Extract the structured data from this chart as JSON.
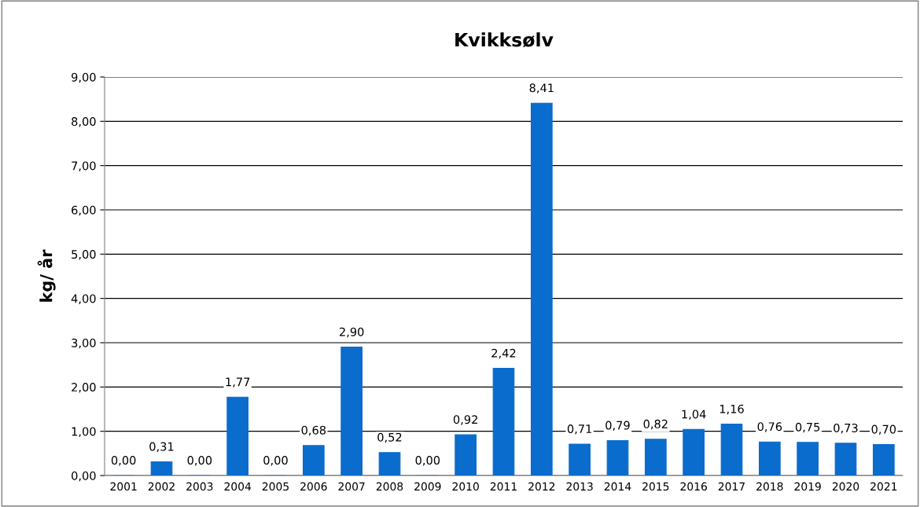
{
  "chart_data": {
    "type": "bar",
    "title": "Kvikksølv",
    "ylabel": "kg/ år",
    "categories": [
      "2001",
      "2002",
      "2003",
      "2004",
      "2005",
      "2006",
      "2007",
      "2008",
      "2009",
      "2010",
      "2011",
      "2012",
      "2013",
      "2014",
      "2015",
      "2016",
      "2017",
      "2018",
      "2019",
      "2020",
      "2021"
    ],
    "values": [
      0.0,
      0.31,
      0.0,
      1.77,
      0.0,
      0.68,
      2.9,
      0.52,
      0.0,
      0.92,
      2.42,
      8.41,
      0.71,
      0.79,
      0.82,
      1.04,
      1.16,
      0.76,
      0.75,
      0.73,
      0.7
    ],
    "value_labels": [
      "0,00",
      "0,31",
      "0,00",
      "1,77",
      "0,00",
      "0,68",
      "2,90",
      "0,52",
      "0,00",
      "0,92",
      "2,42",
      "8,41",
      "0,71",
      "0,79",
      "0,82",
      "1,04",
      "1,16",
      "0,76",
      "0,75",
      "0,73",
      "0,70"
    ],
    "color": "#0a6ccc",
    "ylim": [
      0,
      9
    ],
    "yticks": [
      {
        "value": 0,
        "label": "0,00"
      },
      {
        "value": 1,
        "label": "1,00"
      },
      {
        "value": 2,
        "label": "2,00"
      },
      {
        "value": 3,
        "label": "3,00"
      },
      {
        "value": 4,
        "label": "4,00"
      },
      {
        "value": 5,
        "label": "5,00"
      },
      {
        "value": 6,
        "label": "6,00"
      },
      {
        "value": 7,
        "label": "7,00"
      },
      {
        "value": 8,
        "label": "8,00"
      },
      {
        "value": 9,
        "label": "9,00"
      }
    ],
    "grid": "y"
  }
}
